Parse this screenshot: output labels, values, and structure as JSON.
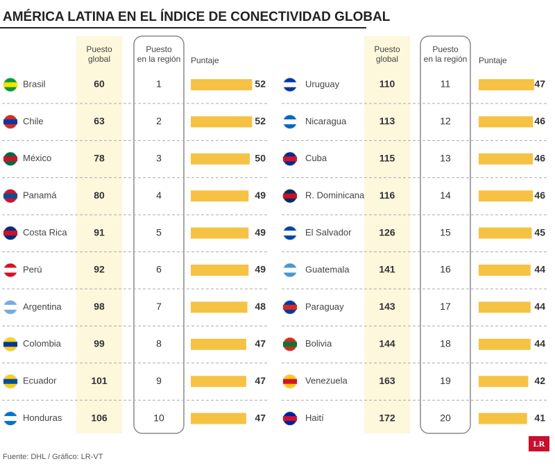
{
  "title": "AMÉRICA LATINA EN EL ÍNDICE DE CONECTIVIDAD GLOBAL",
  "headers": {
    "global": "Puesto global",
    "region": "Puesto en la región",
    "score": "Puntaje"
  },
  "rows": [
    {
      "country": "Brasil",
      "global": 60,
      "region": 1,
      "score": 52
    },
    {
      "country": "Chile",
      "global": 63,
      "region": 2,
      "score": 52
    },
    {
      "country": "México",
      "global": 78,
      "region": 3,
      "score": 50
    },
    {
      "country": "Panamá",
      "global": 80,
      "region": 4,
      "score": 49
    },
    {
      "country": "Costa Rica",
      "global": 91,
      "region": 5,
      "score": 49
    },
    {
      "country": "Perú",
      "global": 92,
      "region": 6,
      "score": 49
    },
    {
      "country": "Argentina",
      "global": 98,
      "region": 7,
      "score": 48
    },
    {
      "country": "Colombia",
      "global": 99,
      "region": 8,
      "score": 47
    },
    {
      "country": "Ecuador",
      "global": 101,
      "region": 9,
      "score": 47
    },
    {
      "country": "Honduras",
      "global": 106,
      "region": 10,
      "score": 47
    },
    {
      "country": "Uruguay",
      "global": 110,
      "region": 11,
      "score": 47
    },
    {
      "country": "Nicaragua",
      "global": 113,
      "region": 12,
      "score": 46
    },
    {
      "country": "Cuba",
      "global": 115,
      "region": 13,
      "score": 46
    },
    {
      "country": "R. Dominicana",
      "global": 116,
      "region": 14,
      "score": 46
    },
    {
      "country": "El Salvador",
      "global": 126,
      "region": 15,
      "score": 45
    },
    {
      "country": "Guatemala",
      "global": 141,
      "region": 16,
      "score": 44
    },
    {
      "country": "Paraguay",
      "global": 143,
      "region": 17,
      "score": 44
    },
    {
      "country": "Bolivia",
      "global": 144,
      "region": 18,
      "score": 44
    },
    {
      "country": "Venezuela",
      "global": 163,
      "region": 19,
      "score": 42
    },
    {
      "country": "Haití",
      "global": 172,
      "region": 20,
      "score": 41
    }
  ],
  "source": "Fuente: DHL / Gráfico: LR-VT",
  "logo": "LR"
}
